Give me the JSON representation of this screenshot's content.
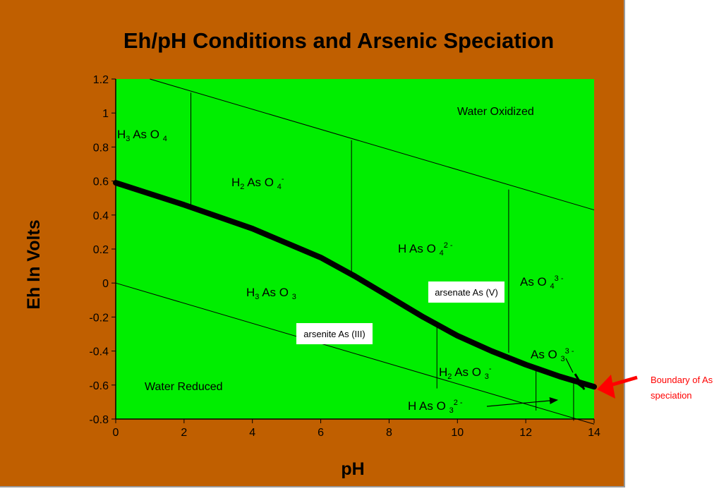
{
  "chart_data": {
    "type": "line",
    "title": "Eh/pH  Conditions and Arsenic Speciation",
    "xlabel": "pH",
    "ylabel": "Eh In Volts",
    "xlim": [
      0,
      14
    ],
    "ylim": [
      -0.8,
      1.2
    ],
    "xticks": [
      "0",
      "2",
      "4",
      "6",
      "8",
      "10",
      "12",
      "14"
    ],
    "yticks": [
      "1.2",
      "1",
      "0.8",
      "0.6",
      "0.4",
      "0.2",
      "0",
      "-0.2",
      "-0.4",
      "-0.6",
      "-0.8"
    ],
    "background_color": "#00ee00",
    "frame_color": "#c05f00",
    "water_lines": [
      {
        "x": [
          1,
          14
        ],
        "y": [
          1.2,
          0.43
        ]
      },
      {
        "x": [
          0,
          14
        ],
        "y": [
          0.0,
          -0.83
        ]
      }
    ],
    "boundary_As_speciation": {
      "x": [
        0,
        2,
        4,
        6,
        7,
        8,
        9,
        10,
        11,
        12,
        13,
        14
      ],
      "y": [
        0.59,
        0.46,
        0.32,
        0.15,
        0.04,
        -0.08,
        -0.2,
        -0.31,
        -0.4,
        -0.48,
        -0.55,
        -0.61
      ]
    },
    "vertical_boundaries": [
      {
        "x": 2.2,
        "y": [
          0.43,
          1.12
        ]
      },
      {
        "x": 6.9,
        "y": [
          0.04,
          0.84
        ]
      },
      {
        "x": 11.5,
        "y": [
          -0.41,
          0.55
        ]
      },
      {
        "x": 9.4,
        "y": [
          -0.23,
          -0.62
        ]
      },
      {
        "x": 12.3,
        "y": [
          -0.49,
          -0.75
        ]
      },
      {
        "x": 13.4,
        "y": [
          -0.56,
          -0.81
        ]
      }
    ],
    "regions": [
      {
        "name": "water_oxidized",
        "label": "Water Oxidized"
      },
      {
        "name": "water_reduced",
        "label": "Water Reduced"
      }
    ],
    "species": [
      {
        "parts": [
          "H",
          "3",
          " As O ",
          "4",
          ""
        ]
      },
      {
        "parts": [
          "H",
          "2",
          " As O ",
          "4",
          "-"
        ]
      },
      {
        "parts": [
          "H As O ",
          "",
          "",
          "4",
          "2 -"
        ]
      },
      {
        "parts": [
          "As O ",
          "",
          "",
          "4",
          "3 -"
        ]
      },
      {
        "parts": [
          "H",
          "3",
          " As O ",
          "3",
          ""
        ]
      },
      {
        "parts": [
          "H",
          "2",
          " As O ",
          "3",
          "-"
        ]
      },
      {
        "parts": [
          "As O ",
          "",
          "",
          "3",
          "3 -"
        ]
      },
      {
        "parts": [
          "H As O ",
          "",
          "",
          "3",
          "2 -"
        ]
      }
    ],
    "callouts": [
      "arsenate As (V)",
      "arsenite As (III)"
    ],
    "annotation": {
      "text_lines": [
        "Boundary of As",
        "speciation"
      ],
      "color": "#ff0000"
    }
  }
}
